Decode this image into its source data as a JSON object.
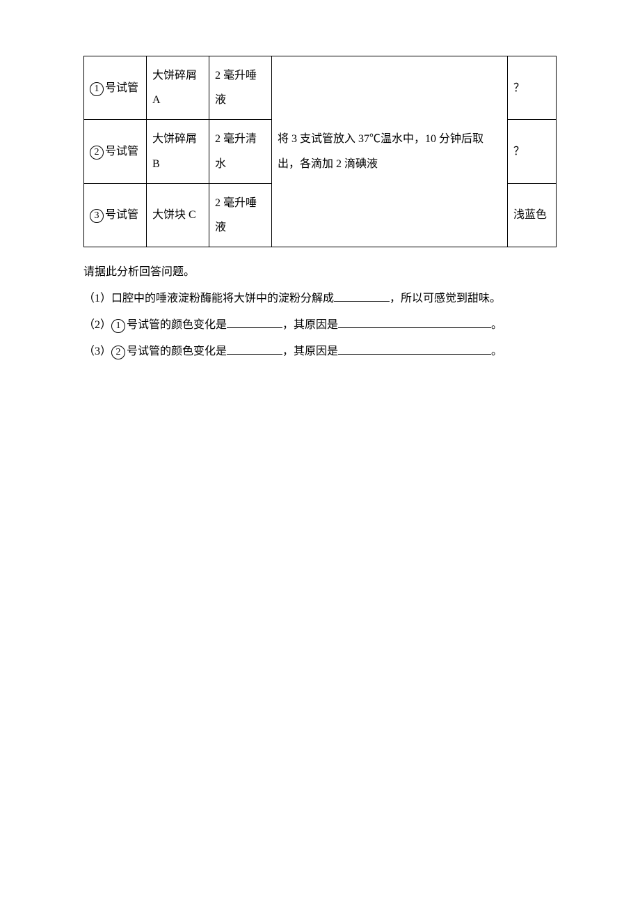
{
  "table": {
    "rows": [
      {
        "tube_num": "1",
        "tube_suffix": "号试管",
        "material": "大饼碎屑A",
        "liquid": "2 毫升唾液",
        "result": "？"
      },
      {
        "tube_num": "2",
        "tube_suffix": "号试管",
        "material": "大饼碎屑B",
        "liquid": "2 毫升清水",
        "result": "？"
      },
      {
        "tube_num": "3",
        "tube_suffix": "号试管",
        "material": "大饼块 C",
        "liquid": "2 毫升唾液",
        "result": "浅蓝色"
      }
    ],
    "procedure": "将 3 支试管放入 37℃温水中，10 分钟后取出，各滴加 2 滴碘液"
  },
  "intro": "请据此分析回答问题。",
  "q1": {
    "prefix": "（1）口腔中的唾液淀粉酶能将大饼中的淀粉分解成",
    "suffix": "，所以可感觉到甜味。"
  },
  "q2": {
    "prefix": "（2）",
    "circled": "1",
    "mid1": "号试管的颜色变化是",
    "mid2": "，其原因是",
    "suffix": "。"
  },
  "q3": {
    "prefix": "（3）",
    "circled": "2",
    "mid1": "号试管的颜色变化是",
    "mid2": "，其原因是",
    "suffix": "。"
  }
}
